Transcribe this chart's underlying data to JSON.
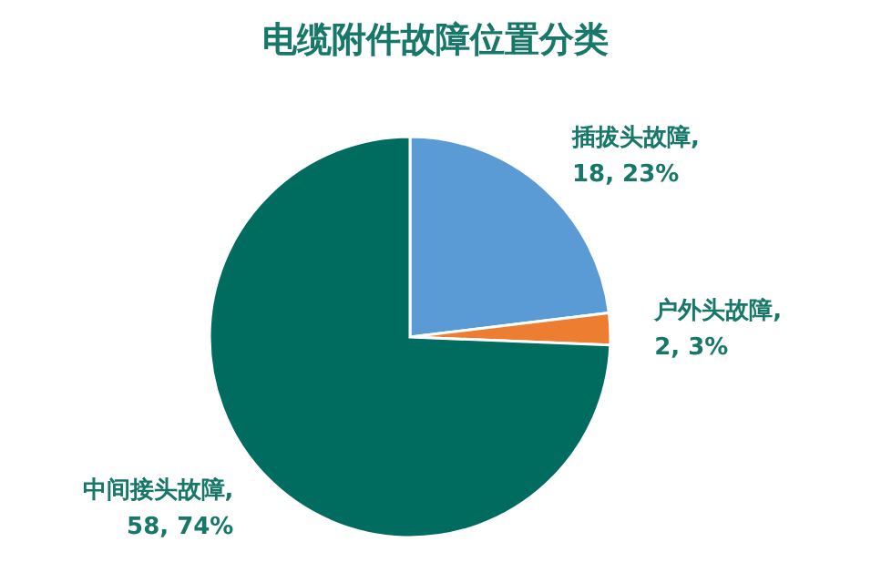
{
  "chart_data": {
    "type": "pie",
    "title": "电缆附件故障位置分类",
    "categories": [
      "插拔头故障",
      "户外头故障",
      "中间接头故障"
    ],
    "values": [
      18,
      2,
      58
    ],
    "value_labels": [
      ", 18, 23%",
      ", 2, 3%",
      ", 58, 74%"
    ],
    "colors": [
      "#5b9bd5",
      "#ed7d31",
      "#006b5f"
    ]
  }
}
